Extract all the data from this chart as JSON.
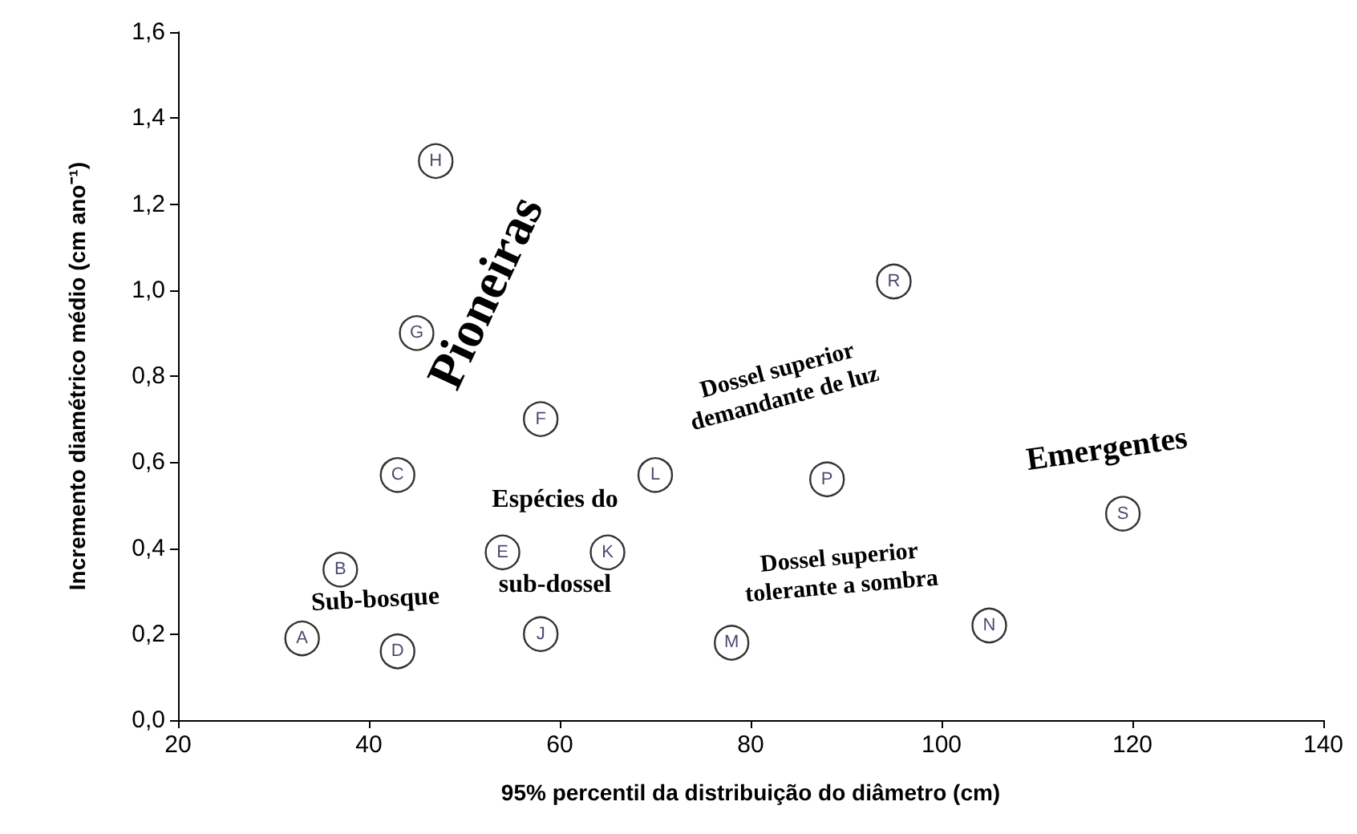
{
  "chart_data": {
    "type": "scatter",
    "xlabel": "95% percentil da distribuição do diâmetro (cm)",
    "ylabel": "Incremento diamétrico médio (cm ano⁻¹)",
    "x": [
      33,
      37,
      43,
      43,
      54,
      58,
      45,
      47,
      58,
      65,
      70,
      78,
      105,
      88,
      95,
      119
    ],
    "series": [
      {
        "color": "#000000",
        "values": [
          0.19,
          0.35,
          0.57,
          0.16,
          0.39,
          0.7,
          0.9,
          1.3,
          0.2,
          0.39,
          0.57,
          0.18,
          0.22,
          0.56,
          1.02,
          0.48
        ],
        "value_labels": [
          "A",
          "B",
          "C",
          "D",
          "E",
          "F",
          "G",
          "H",
          "J",
          "K",
          "L",
          "M",
          "N",
          "P",
          "R",
          "S"
        ]
      }
    ],
    "xlim": [
      20,
      140
    ],
    "xticks": [
      20,
      40,
      60,
      80,
      100,
      120,
      140
    ],
    "ylim": [
      0,
      1.6
    ],
    "yticks": [
      {
        "value": 0,
        "label": "0,0"
      },
      {
        "value": 0.2,
        "label": "0,2"
      },
      {
        "value": 0.4,
        "label": "0,4"
      },
      {
        "value": 0.6,
        "label": "0,6"
      },
      {
        "value": 0.8,
        "label": "0,8"
      },
      {
        "value": 1.0,
        "label": "1,0"
      },
      {
        "value": 1.2,
        "label": "1,2"
      },
      {
        "value": 1.4,
        "label": "1,4"
      },
      {
        "value": 1.6,
        "label": "1,6"
      }
    ],
    "grid": false,
    "marker": "circle",
    "annotations": [
      "Pioneiras",
      "Dossel superior\ndemandante de luz",
      "Emergentes",
      "Espécies do\nsub-dossel",
      "Sub-bosque",
      "Dossel superior\ntolerante a sombra"
    ]
  }
}
